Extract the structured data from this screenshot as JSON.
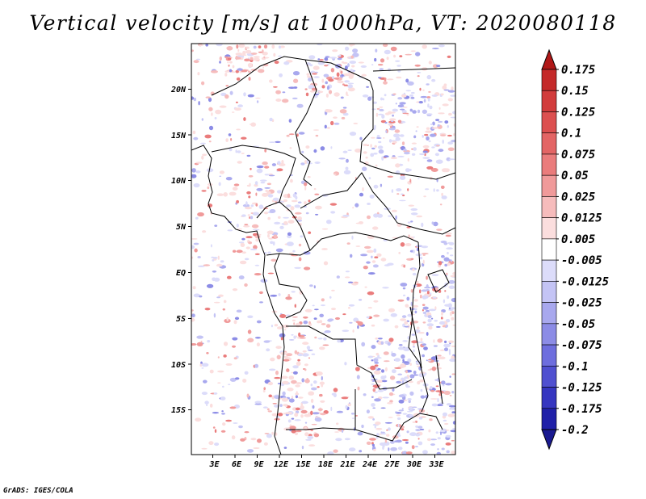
{
  "title": "Vertical velocity [m/s] at 1000hPa, VT: 2020080118",
  "credit": "GrADS: IGES/COLA",
  "map": {
    "lon_range": [
      0,
      36
    ],
    "lat_range": [
      -20,
      25
    ],
    "x_ticks": [
      "3E",
      "6E",
      "9E",
      "12E",
      "15E",
      "18E",
      "21E",
      "24E",
      "27E",
      "30E",
      "33E"
    ],
    "y_ticks": [
      "20N",
      "15N",
      "10N",
      "5N",
      "EQ",
      "5S",
      "10S",
      "15S"
    ]
  },
  "colorbar": {
    "labels": [
      "0.175",
      "0.15",
      "0.125",
      "0.1",
      "0.075",
      "0.05",
      "0.025",
      "0.0125",
      "0.005",
      "-0.005",
      "-0.0125",
      "-0.025",
      "-0.05",
      "-0.075",
      "-0.1",
      "-0.125",
      "-0.175",
      "-0.2"
    ],
    "colors": [
      "#b01818",
      "#c42a2a",
      "#d23c3c",
      "#dc5050",
      "#e36565",
      "#ea7c7c",
      "#f09a9a",
      "#f6bcbc",
      "#fbdede",
      "#ffffff",
      "#dcdcfa",
      "#c4c4f5",
      "#a8a8ee",
      "#8c8ce6",
      "#6e6ede",
      "#5050d0",
      "#3636c0",
      "#2020a8",
      "#1a1a90"
    ]
  }
}
